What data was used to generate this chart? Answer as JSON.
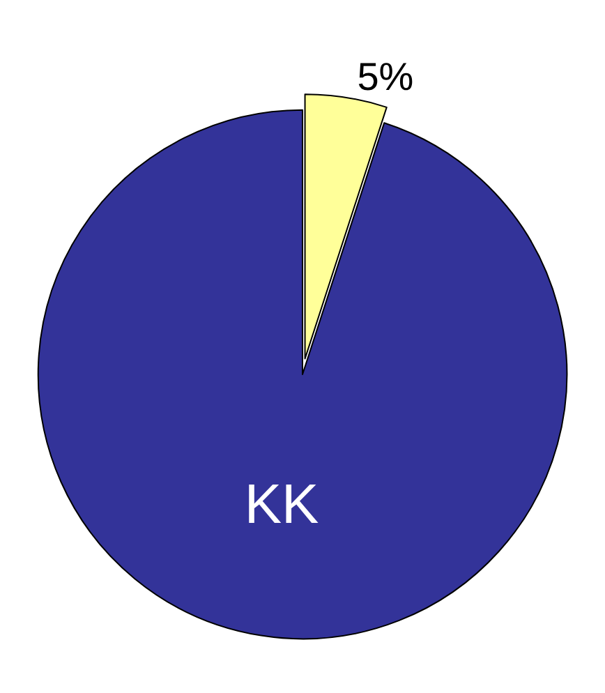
{
  "chart_data": {
    "type": "pie",
    "categories": [
      null,
      "KK"
    ],
    "values": [
      5,
      95
    ],
    "colors": [
      "#ffff99",
      "#333399"
    ],
    "value_labels": [
      "5%",
      null
    ],
    "legend": false
  }
}
